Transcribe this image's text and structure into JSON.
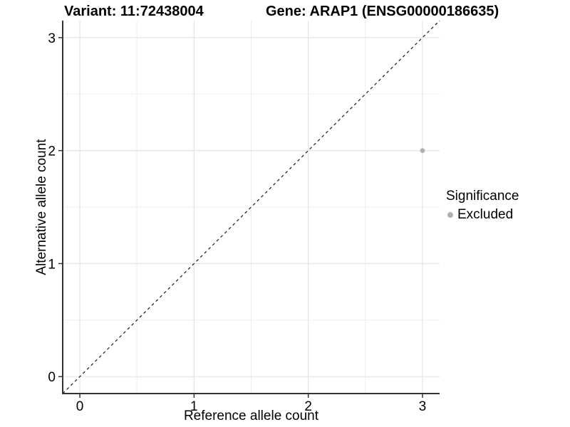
{
  "chart_data": {
    "type": "scatter",
    "title_left": "Variant: 11:72438004",
    "title_right": "Gene: ARAP1 (ENSG00000186635)",
    "xlabel": "Reference allele count",
    "ylabel": "Alternative allele count",
    "xlim": [
      -0.15,
      3.15
    ],
    "ylim": [
      -0.15,
      3.15
    ],
    "x_ticks": [
      0,
      1,
      2,
      3
    ],
    "y_ticks": [
      0,
      1,
      2,
      3
    ],
    "x_minor_ticks": [
      0.5,
      1.5,
      2.5
    ],
    "y_minor_ticks": [
      0.5,
      1.5,
      2.5
    ],
    "grid": true,
    "reference_line": {
      "type": "identity",
      "style": "dashed",
      "color": "#1a1a1a"
    },
    "series": [
      {
        "name": "Excluded",
        "color": "#b0b0b0",
        "points": [
          {
            "x": 3,
            "y": 2
          }
        ]
      }
    ],
    "legend": {
      "title": "Significance",
      "position": "right",
      "entries": [
        {
          "label": "Excluded",
          "color": "#b0b0b0"
        }
      ]
    },
    "style": {
      "background": "#ffffff",
      "grid_major_color": "#e4e4e4",
      "grid_minor_color": "#efefef",
      "axis_line_color": "#333333",
      "tick_color": "#333333",
      "text_color": "#000000",
      "point_radius": 3.4
    }
  }
}
